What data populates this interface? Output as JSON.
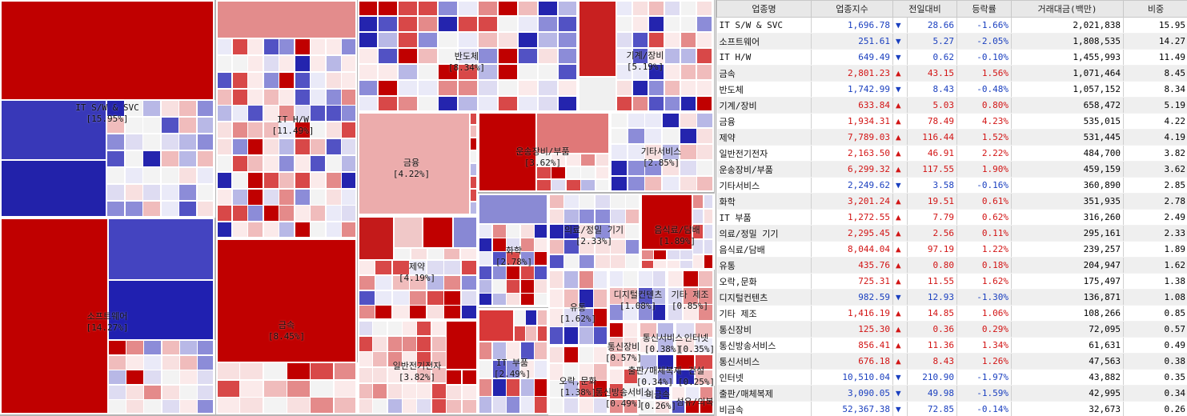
{
  "colors": {
    "up_strong": "#c00000",
    "up_mid": "#e08080",
    "up_light": "#f5d0d0",
    "down_strong": "#2020b0",
    "down_mid": "#8080d8",
    "down_light": "#d0d0f0",
    "neutral": "#f2f2f2",
    "up_text": "#d21414",
    "down_text": "#1a3fbf"
  },
  "treemap": {
    "labels": [
      {
        "name": "IT S/W & SVC",
        "weight": "[15.95%]"
      },
      {
        "name": "IT H/W",
        "weight": "[11.49%]"
      },
      {
        "name": "반도체",
        "weight": "[8.34%]"
      },
      {
        "name": "기계/장비",
        "weight": "[5.19%]"
      },
      {
        "name": "소프트웨어",
        "weight": "[14.27%]"
      },
      {
        "name": "금속",
        "weight": "[8.45%]"
      },
      {
        "name": "금융",
        "weight": "[4.22%]"
      },
      {
        "name": "운송장비/부품",
        "weight": "[3.62%]"
      },
      {
        "name": "기타서비스",
        "weight": "[2.85%]"
      },
      {
        "name": "제약",
        "weight": "[4.19%]"
      },
      {
        "name": "화학",
        "weight": "[2.78%]"
      },
      {
        "name": "의료/정밀 기기",
        "weight": "[2.33%]"
      },
      {
        "name": "음식료/담배",
        "weight": "[1.89%]"
      },
      {
        "name": "일반전기전자",
        "weight": "[3.82%]"
      },
      {
        "name": "유통",
        "weight": "[1.62%]"
      },
      {
        "name": "디지털컨텐츠",
        "weight": "[1.08%]"
      },
      {
        "name": "기타 제조",
        "weight": "[0.85%]"
      },
      {
        "name": "IT 부품",
        "weight": "[2.49%]"
      },
      {
        "name": "오락,문화",
        "weight": "[1.38%]"
      },
      {
        "name": "통신장비",
        "weight": "[0.57%]"
      },
      {
        "name": "통신서비스",
        "weight": "[0.38%]"
      },
      {
        "name": "인터넷",
        "weight": "[0.35%]"
      },
      {
        "name": "출판/매체복제",
        "weight": "[0.34%]"
      },
      {
        "name": "건설",
        "weight": "[0.25%]"
      },
      {
        "name": "통신방송서비스",
        "weight": "[0.49%]"
      },
      {
        "name": "비금속",
        "weight": "[0.26%]"
      },
      {
        "name": "섬유/의복",
        "weight": ""
      }
    ]
  },
  "table": {
    "headers": [
      "업종명",
      "업종지수",
      "전일대비",
      "등락률",
      "거래대금(백만)",
      "비중"
    ],
    "rows": [
      {
        "name": "IT S/W & SVC",
        "index": "1,696.78",
        "dir": "down",
        "change": "28.66",
        "rate": "-1.66%",
        "amount": "2,021,838",
        "weight": "15.95"
      },
      {
        "name": "소프트웨어",
        "index": "251.61",
        "dir": "down",
        "change": "5.27",
        "rate": "-2.05%",
        "amount": "1,808,535",
        "weight": "14.27"
      },
      {
        "name": "IT H/W",
        "index": "649.49",
        "dir": "down",
        "change": "0.62",
        "rate": "-0.10%",
        "amount": "1,455,993",
        "weight": "11.49"
      },
      {
        "name": "금속",
        "index": "2,801.23",
        "dir": "up",
        "change": "43.15",
        "rate": "1.56%",
        "amount": "1,071,464",
        "weight": "8.45"
      },
      {
        "name": "반도체",
        "index": "1,742.99",
        "dir": "down",
        "change": "8.43",
        "rate": "-0.48%",
        "amount": "1,057,152",
        "weight": "8.34"
      },
      {
        "name": "기계/장비",
        "index": "633.84",
        "dir": "up",
        "change": "5.03",
        "rate": "0.80%",
        "amount": "658,472",
        "weight": "5.19"
      },
      {
        "name": "금융",
        "index": "1,934.31",
        "dir": "up",
        "change": "78.49",
        "rate": "4.23%",
        "amount": "535,015",
        "weight": "4.22"
      },
      {
        "name": "제약",
        "index": "7,789.03",
        "dir": "up",
        "change": "116.44",
        "rate": "1.52%",
        "amount": "531,445",
        "weight": "4.19"
      },
      {
        "name": "일반전기전자",
        "index": "2,163.50",
        "dir": "up",
        "change": "46.91",
        "rate": "2.22%",
        "amount": "484,700",
        "weight": "3.82"
      },
      {
        "name": "운송장비/부품",
        "index": "6,299.32",
        "dir": "up",
        "change": "117.55",
        "rate": "1.90%",
        "amount": "459,159",
        "weight": "3.62"
      },
      {
        "name": "기타서비스",
        "index": "2,249.62",
        "dir": "down",
        "change": "3.58",
        "rate": "-0.16%",
        "amount": "360,890",
        "weight": "2.85"
      },
      {
        "name": "화학",
        "index": "3,201.24",
        "dir": "up",
        "change": "19.51",
        "rate": "0.61%",
        "amount": "351,935",
        "weight": "2.78"
      },
      {
        "name": "IT 부품",
        "index": "1,272.55",
        "dir": "up",
        "change": "7.79",
        "rate": "0.62%",
        "amount": "316,260",
        "weight": "2.49"
      },
      {
        "name": "의료/정밀 기기",
        "index": "2,295.45",
        "dir": "up",
        "change": "2.56",
        "rate": "0.11%",
        "amount": "295,161",
        "weight": "2.33"
      },
      {
        "name": "음식료/담배",
        "index": "8,044.04",
        "dir": "up",
        "change": "97.19",
        "rate": "1.22%",
        "amount": "239,257",
        "weight": "1.89"
      },
      {
        "name": "유통",
        "index": "435.76",
        "dir": "up",
        "change": "0.80",
        "rate": "0.18%",
        "amount": "204,947",
        "weight": "1.62"
      },
      {
        "name": "오락,문화",
        "index": "725.31",
        "dir": "up",
        "change": "11.55",
        "rate": "1.62%",
        "amount": "175,497",
        "weight": "1.38"
      },
      {
        "name": "디지털컨텐츠",
        "index": "982.59",
        "dir": "down",
        "change": "12.93",
        "rate": "-1.30%",
        "amount": "136,871",
        "weight": "1.08"
      },
      {
        "name": "기타 제조",
        "index": "1,416.19",
        "dir": "up",
        "change": "14.85",
        "rate": "1.06%",
        "amount": "108,266",
        "weight": "0.85"
      },
      {
        "name": "통신장비",
        "index": "125.30",
        "dir": "up",
        "change": "0.36",
        "rate": "0.29%",
        "amount": "72,095",
        "weight": "0.57"
      },
      {
        "name": "통신방송서비스",
        "index": "856.41",
        "dir": "up",
        "change": "11.36",
        "rate": "1.34%",
        "amount": "61,631",
        "weight": "0.49"
      },
      {
        "name": "통신서비스",
        "index": "676.18",
        "dir": "up",
        "change": "8.43",
        "rate": "1.26%",
        "amount": "47,563",
        "weight": "0.38"
      },
      {
        "name": "인터넷",
        "index": "10,510.04",
        "dir": "down",
        "change": "210.90",
        "rate": "-1.97%",
        "amount": "43,882",
        "weight": "0.35"
      },
      {
        "name": "출판/매체복제",
        "index": "3,090.05",
        "dir": "down",
        "change": "49.98",
        "rate": "-1.59%",
        "amount": "42,995",
        "weight": "0.34"
      },
      {
        "name": "비금속",
        "index": "52,367.38",
        "dir": "down",
        "change": "72.85",
        "rate": "-0.14%",
        "amount": "32,673",
        "weight": "0.26"
      }
    ]
  }
}
